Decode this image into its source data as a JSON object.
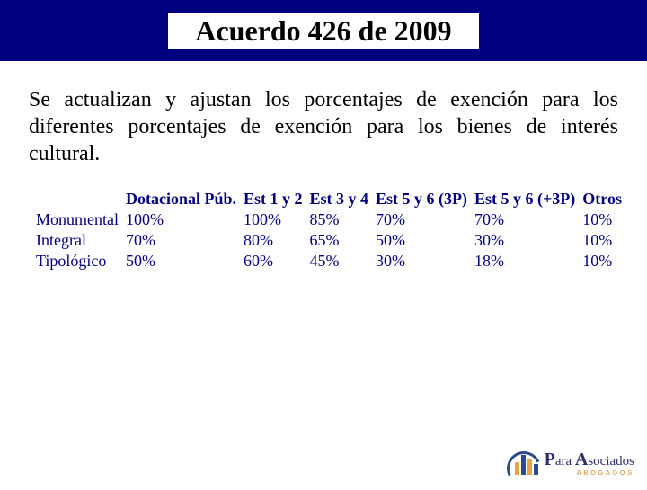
{
  "header": {
    "title": "Acuerdo 426 de 2009",
    "band_color": "#000080",
    "title_color": "#000000",
    "title_fontsize": 32
  },
  "paragraph": {
    "text": "Se actualizan  y ajustan los porcentajes de exención para los diferentes porcentajes de exención para los bienes de interés cultural.",
    "color": "#000000",
    "fontsize": 24
  },
  "table": {
    "type": "table",
    "text_color": "#000080",
    "fontsize": 18,
    "columns": [
      "",
      "Dotacional Púb.",
      "Est 1 y 2",
      "Est 3 y 4",
      "Est 5 y 6 (3P)",
      "Est 5 y 6 (+3P)",
      "Otros"
    ],
    "rows": [
      {
        "label": "Monumental",
        "values": [
          "100%",
          "100%",
          "85%",
          "70%",
          "70%",
          "10%"
        ]
      },
      {
        "label": "Integral",
        "values": [
          "70%",
          "80%",
          "65%",
          "50%",
          "30%",
          "10%"
        ]
      },
      {
        "label": "Tipológico",
        "values": [
          "50%",
          "60%",
          "45%",
          "30%",
          "18%",
          "10%"
        ]
      }
    ]
  },
  "logo": {
    "line1_prefix_cap": "P",
    "line1_prefix_rest": "ara",
    "line1_suffix_cap": "A",
    "line1_suffix_rest": "sociados",
    "line2": "ABOGADOS",
    "primary_color": "#2a4c8f",
    "accent_color": "#e9a53f"
  }
}
